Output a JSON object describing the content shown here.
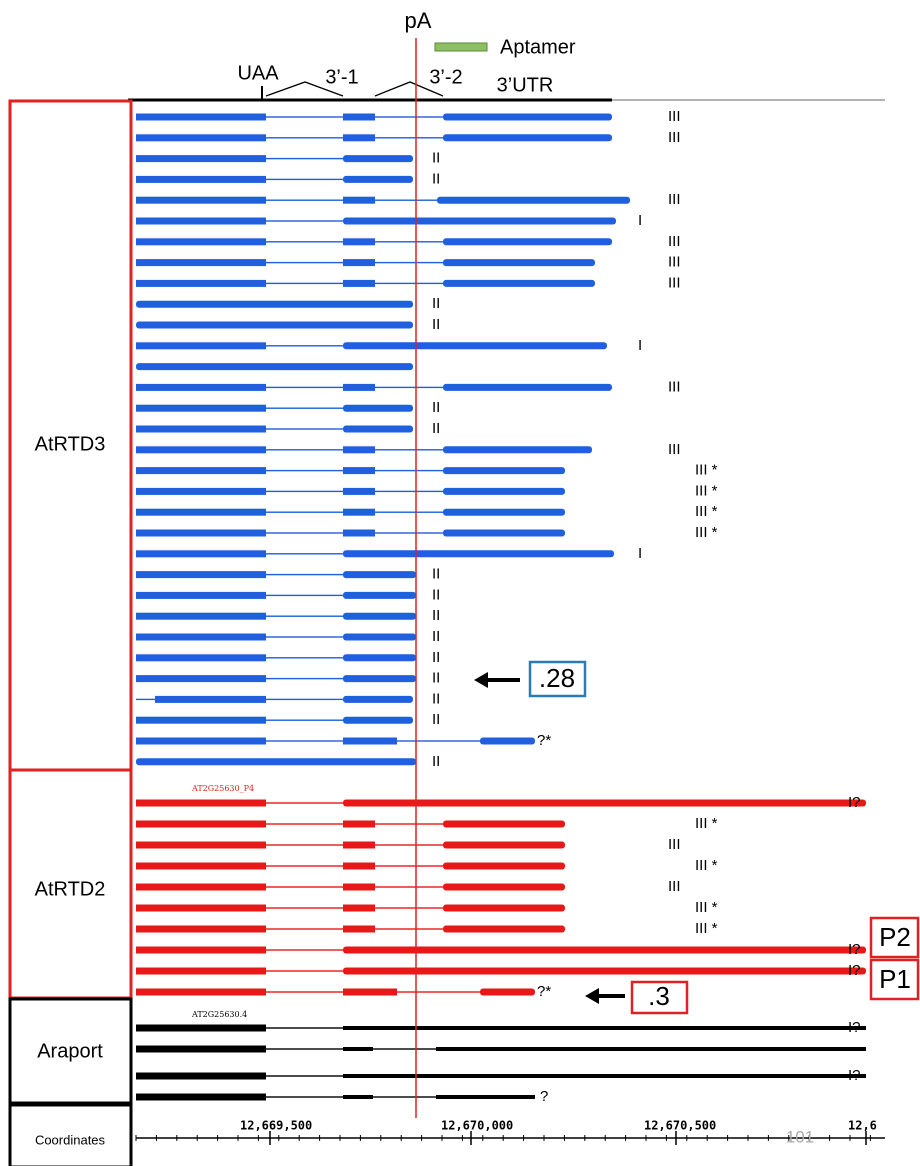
{
  "header": {
    "pa": "pA",
    "aptamer": "Aptamer",
    "uaa": "UAA",
    "splice1": "3’-1",
    "splice2": "3’-2",
    "utr": "3’UTR"
  },
  "sections": [
    {
      "label": "AtRTD3",
      "transcripts": [
        {
          "note": "III"
        },
        {
          "note": "III"
        },
        {
          "note": "II"
        },
        {
          "note": "II"
        },
        {
          "note": "III"
        },
        {
          "note": "I"
        },
        {
          "note": "III"
        },
        {
          "note": "III"
        },
        {
          "note": "III"
        },
        {
          "note": "II"
        },
        {
          "note": "II"
        },
        {
          "note": "I"
        },
        {},
        {
          "note": "III"
        },
        {
          "note": "II"
        },
        {
          "note": "II"
        },
        {
          "note": "III"
        },
        {
          "note": "III *"
        },
        {
          "note": "III *"
        },
        {
          "note": "III *"
        },
        {
          "note": "III *"
        },
        {
          "note": "I"
        },
        {
          "note": "II"
        },
        {
          "note": "II"
        },
        {
          "note": "II"
        },
        {
          "note": "II"
        },
        {
          "note": "II"
        },
        {
          "note": "II"
        },
        {
          "note": "II"
        },
        {
          "note": "II"
        },
        {
          "note": "?*"
        },
        {
          "note": "II"
        }
      ]
    },
    {
      "label": "AtRTD2",
      "tag": "AT2G25630_P4",
      "transcripts": [
        {
          "note": "I?"
        },
        {
          "note": "III *"
        },
        {
          "note": "III"
        },
        {
          "note": "III *"
        },
        {
          "note": "III"
        },
        {
          "note": "III *"
        },
        {
          "note": "III *"
        },
        {
          "note": "I?"
        },
        {
          "note": "I?"
        },
        {
          "note": "?*"
        }
      ]
    },
    {
      "label": "Araport",
      "tag": "AT2G25630.4",
      "transcripts": [
        {
          "note": "I?"
        },
        {},
        {
          "note": "I?"
        },
        {
          "note": "?"
        }
      ]
    }
  ],
  "callouts": {
    "t28": ".28",
    "t3": ".3",
    "p2": "P2",
    "p1": "P1"
  },
  "coordinates": {
    "label": "Coordinates",
    "ticks": [
      "12,669,500",
      "12,670,000",
      "12,670,500",
      "12,6"
    ],
    "page": "101"
  }
}
